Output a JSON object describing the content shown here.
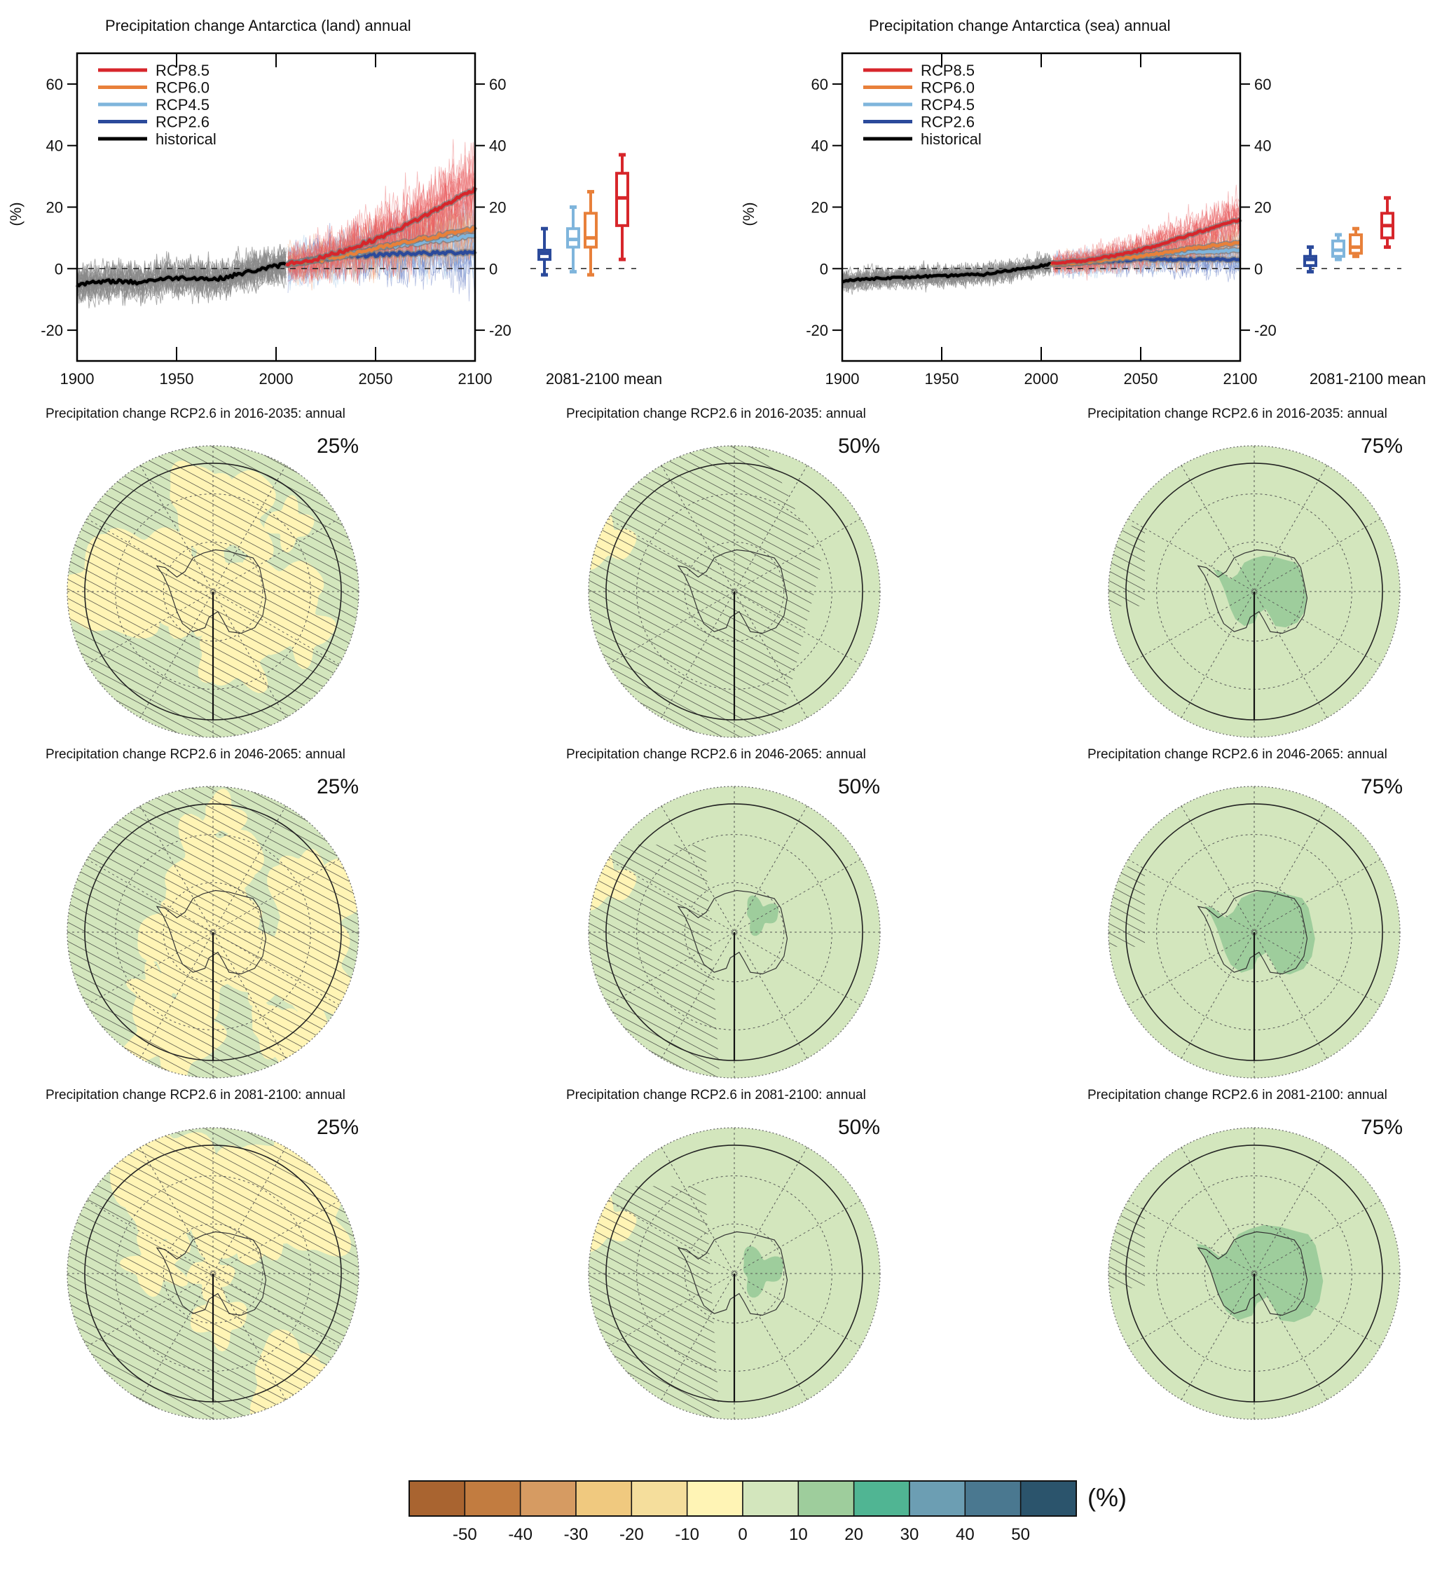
{
  "chart_data": [
    {
      "type": "line",
      "id": "land",
      "title": "Precipitation change Antarctica (land) annual",
      "xlabel": "",
      "ylabel": "(%)",
      "xlim": [
        1900,
        2100
      ],
      "ylim": [
        -30,
        70
      ],
      "xticks": [
        1900,
        1950,
        2000,
        2050,
        2100
      ],
      "yticks": [
        -20,
        0,
        20,
        40,
        60
      ],
      "legend": {
        "placement": "top-left",
        "entries": [
          "RCP8.5",
          "RCP6.0",
          "RCP4.5",
          "RCP2.6",
          "historical"
        ]
      },
      "series": [
        {
          "name": "historical",
          "color": "#000000",
          "x": [
            1900,
            1910,
            1920,
            1930,
            1940,
            1950,
            1960,
            1970,
            1980,
            1990,
            2005
          ],
          "values": [
            -5,
            -4.5,
            -4,
            -4.5,
            -3.5,
            -3,
            -3,
            -3.5,
            -2,
            -0.5,
            1.5
          ]
        },
        {
          "name": "RCP2.6",
          "color": "#2b4a9b",
          "x": [
            2005,
            2020,
            2035,
            2050,
            2065,
            2080,
            2100
          ],
          "values": [
            1.5,
            3,
            4,
            4.5,
            5,
            5,
            5.5
          ]
        },
        {
          "name": "RCP4.5",
          "color": "#7fb5dc",
          "x": [
            2005,
            2020,
            2035,
            2050,
            2065,
            2080,
            2100
          ],
          "values": [
            1.5,
            3,
            4.5,
            6.5,
            8,
            9,
            10.5
          ]
        },
        {
          "name": "RCP6.0",
          "color": "#e8803a",
          "x": [
            2005,
            2020,
            2035,
            2050,
            2065,
            2080,
            2100
          ],
          "values": [
            1.5,
            2.5,
            4.5,
            6.5,
            8.5,
            10.5,
            13
          ]
        },
        {
          "name": "RCP8.5",
          "color": "#d7262b",
          "x": [
            2005,
            2020,
            2035,
            2050,
            2065,
            2080,
            2100
          ],
          "values": [
            1.5,
            3,
            6,
            9.5,
            14,
            19,
            26
          ]
        }
      ],
      "spread_note": "ensemble members shown as thin lines",
      "zero_line": true,
      "boxplots": {
        "label": "2081-2100 mean",
        "items": [
          {
            "name": "RCP2.6",
            "color": "#2b4a9b",
            "min": -2,
            "q1": 3,
            "median": 5,
            "q3": 6,
            "max": 13
          },
          {
            "name": "RCP4.5",
            "color": "#7fb5dc",
            "min": -1,
            "q1": 7,
            "median": 9.5,
            "q3": 13,
            "max": 20
          },
          {
            "name": "RCP6.0",
            "color": "#e8803a",
            "min": -2,
            "q1": 7,
            "median": 10,
            "q3": 18,
            "max": 25
          },
          {
            "name": "RCP8.5",
            "color": "#d7262b",
            "min": 3,
            "q1": 14,
            "median": 23,
            "q3": 31,
            "max": 37
          }
        ]
      }
    },
    {
      "type": "line",
      "id": "sea",
      "title": "Precipitation change Antarctica (sea) annual",
      "xlabel": "",
      "ylabel": "(%)",
      "xlim": [
        1900,
        2100
      ],
      "ylim": [
        -30,
        70
      ],
      "xticks": [
        1900,
        1950,
        2000,
        2050,
        2100
      ],
      "yticks": [
        -20,
        0,
        20,
        40,
        60
      ],
      "legend": {
        "placement": "top-left",
        "entries": [
          "RCP8.5",
          "RCP6.0",
          "RCP4.5",
          "RCP2.6",
          "historical"
        ]
      },
      "series": [
        {
          "name": "historical",
          "color": "#000000",
          "x": [
            1900,
            1910,
            1920,
            1930,
            1940,
            1950,
            1960,
            1970,
            1980,
            1990,
            2005
          ],
          "values": [
            -4,
            -3.5,
            -3,
            -3,
            -2.5,
            -2.5,
            -2,
            -2,
            -1,
            0,
            1.5
          ]
        },
        {
          "name": "RCP2.6",
          "color": "#2b4a9b",
          "x": [
            2005,
            2020,
            2035,
            2050,
            2065,
            2080,
            2100
          ],
          "values": [
            1.5,
            2,
            2.5,
            3,
            3,
            3,
            3
          ]
        },
        {
          "name": "RCP4.5",
          "color": "#7fb5dc",
          "x": [
            2005,
            2020,
            2035,
            2050,
            2065,
            2080,
            2100
          ],
          "values": [
            1.5,
            2,
            3,
            4,
            5,
            5.5,
            6
          ]
        },
        {
          "name": "RCP6.0",
          "color": "#e8803a",
          "x": [
            2005,
            2020,
            2035,
            2050,
            2065,
            2080,
            2100
          ],
          "values": [
            1.5,
            2,
            3,
            4,
            5.5,
            7,
            8.5
          ]
        },
        {
          "name": "RCP8.5",
          "color": "#d7262b",
          "x": [
            2005,
            2020,
            2035,
            2050,
            2065,
            2080,
            2100
          ],
          "values": [
            1.5,
            2.5,
            4,
            6,
            9,
            12,
            16
          ]
        }
      ],
      "spread_note": "ensemble members shown as thin lines",
      "zero_line": true,
      "boxplots": {
        "label": "2081-2100 mean",
        "items": [
          {
            "name": "RCP2.6",
            "color": "#2b4a9b",
            "min": -1,
            "q1": 1,
            "median": 3,
            "q3": 4,
            "max": 7
          },
          {
            "name": "RCP4.5",
            "color": "#7fb5dc",
            "min": 3,
            "q1": 4,
            "median": 6,
            "q3": 9,
            "max": 11
          },
          {
            "name": "RCP6.0",
            "color": "#e8803a",
            "min": 4,
            "q1": 5,
            "median": 7,
            "q3": 11,
            "max": 13
          },
          {
            "name": "RCP8.5",
            "color": "#d7262b",
            "min": 7,
            "q1": 10,
            "median": 14,
            "q3": 18,
            "max": 23
          }
        ]
      }
    },
    {
      "type": "heatmap",
      "id": "maps",
      "description": "Polar stereographic maps of Antarctic precipitation change, RCP2.6",
      "rows": [
        "2016-2035",
        "2046-2065",
        "2081-2100"
      ],
      "columns": [
        "25%",
        "50%",
        "75%"
      ],
      "panels": [
        {
          "title": "Precipitation change RCP2.6 in 2016-2035: annual",
          "percentile": "25%",
          "dominant": [
            "-10 to 0",
            "0 to 10"
          ],
          "hatched": "most"
        },
        {
          "title": "Precipitation change RCP2.6 in 2016-2035: annual",
          "percentile": "50%",
          "dominant": [
            "0 to 10"
          ],
          "hatched": "much"
        },
        {
          "title": "Precipitation change RCP2.6 in 2016-2035: annual",
          "percentile": "75%",
          "dominant": [
            "0 to 10",
            "10 to 20"
          ],
          "hatched": "little"
        },
        {
          "title": "Precipitation change RCP2.6 in 2046-2065: annual",
          "percentile": "25%",
          "dominant": [
            "-10 to 0",
            "0 to 10"
          ],
          "hatched": "most"
        },
        {
          "title": "Precipitation change RCP2.6 in 2046-2065: annual",
          "percentile": "50%",
          "dominant": [
            "0 to 10"
          ],
          "hatched": "some"
        },
        {
          "title": "Precipitation change RCP2.6 in 2046-2065: annual",
          "percentile": "75%",
          "dominant": [
            "0 to 10",
            "10 to 20"
          ],
          "hatched": "little"
        },
        {
          "title": "Precipitation change RCP2.6 in 2081-2100: annual",
          "percentile": "25%",
          "dominant": [
            "-10 to 0",
            "0 to 10"
          ],
          "hatched": "most"
        },
        {
          "title": "Precipitation change RCP2.6 in 2081-2100: annual",
          "percentile": "50%",
          "dominant": [
            "0 to 10"
          ],
          "hatched": "some"
        },
        {
          "title": "Precipitation change RCP2.6 in 2081-2100: annual",
          "percentile": "75%",
          "dominant": [
            "0 to 10",
            "10 to 20"
          ],
          "hatched": "little"
        }
      ]
    }
  ],
  "colorbar": {
    "unit": "(%)",
    "ticks": [
      "-50",
      "-40",
      "-30",
      "-20",
      "-10",
      "0",
      "10",
      "20",
      "30",
      "40",
      "50"
    ],
    "colors": [
      "#a96430",
      "#c27c40",
      "#d69b62",
      "#f0c97f",
      "#f5de9c",
      "#fff4b5",
      "#d3e6bd",
      "#9ecd9c",
      "#50b593",
      "#6c9eb3",
      "#4a7890",
      "#2b546c"
    ]
  }
}
